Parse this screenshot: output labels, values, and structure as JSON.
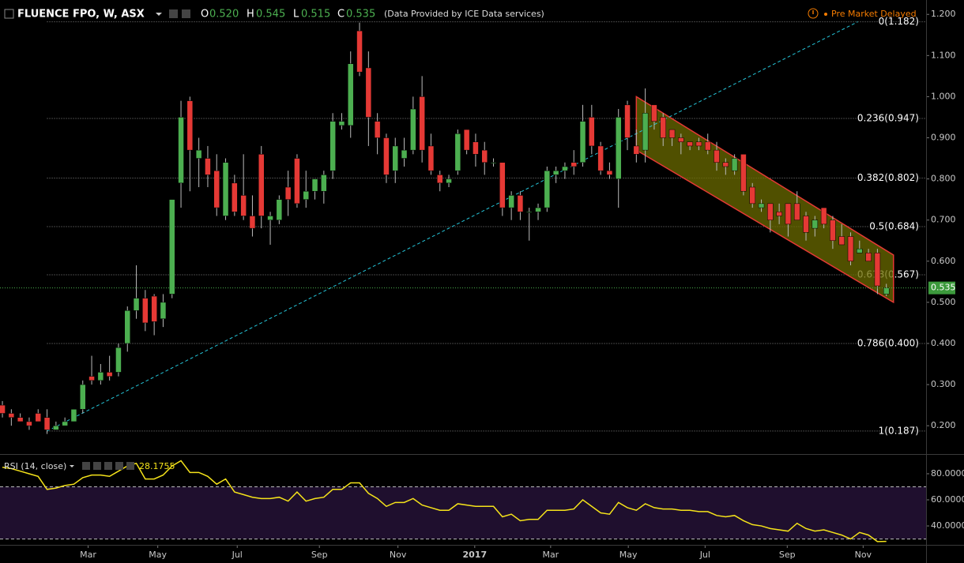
{
  "header": {
    "symbol": "FLUENCE FPO, W, ASX",
    "ohlc": [
      {
        "label": "O",
        "value": "0.520"
      },
      {
        "label": "H",
        "value": "0.545"
      },
      {
        "label": "L",
        "value": "0.515"
      },
      {
        "label": "C",
        "value": "0.535"
      }
    ],
    "provider": "(Data Provided by ICE Data services)",
    "status": "Pre Market Delayed"
  },
  "chart_data": [
    {
      "type": "candlestick",
      "up_color": "#4caf50",
      "down_color": "#e53935",
      "open": [
        0.25,
        0.23,
        0.22,
        0.21,
        0.23,
        0.22,
        0.19,
        0.2,
        0.21,
        0.24,
        0.32,
        0.31,
        0.33,
        0.33,
        0.4,
        0.48,
        0.51,
        0.515,
        0.46,
        0.52,
        0.79,
        0.99,
        0.85,
        0.85,
        0.82,
        0.71,
        0.79,
        0.76,
        0.71,
        0.86,
        0.7,
        0.7,
        0.78,
        0.85,
        0.75,
        0.77,
        0.77,
        0.82,
        0.93,
        0.93,
        1.16,
        1.07,
        0.94,
        0.9,
        0.82,
        0.85,
        0.87,
        1.0,
        0.88,
        0.81,
        0.79,
        0.82,
        0.92,
        0.89,
        0.87,
        0.84,
        0.84,
        0.73,
        0.76,
        0.72,
        0.72,
        0.73,
        0.81,
        0.82,
        0.84,
        0.84,
        0.95,
        0.88,
        0.82,
        0.8,
        0.98,
        0.88,
        0.87,
        0.98,
        0.95,
        0.92,
        0.9,
        0.89,
        0.89,
        0.89,
        0.87,
        0.84,
        0.82,
        0.86,
        0.78,
        0.73,
        0.74,
        0.72,
        0.74,
        0.74,
        0.71,
        0.68,
        0.73,
        0.7,
        0.66,
        0.66,
        0.62,
        0.62,
        0.62,
        0.52
      ],
      "high": [
        0.26,
        0.24,
        0.23,
        0.22,
        0.24,
        0.24,
        0.21,
        0.22,
        0.24,
        0.31,
        0.37,
        0.35,
        0.37,
        0.4,
        0.49,
        0.59,
        0.53,
        0.52,
        0.52,
        0.75,
        0.99,
        1.0,
        0.9,
        0.88,
        0.86,
        0.85,
        0.81,
        0.86,
        0.76,
        0.88,
        0.72,
        0.76,
        0.82,
        0.86,
        0.82,
        0.8,
        0.82,
        0.96,
        0.96,
        1.11,
        1.18,
        1.11,
        0.96,
        0.91,
        0.9,
        0.9,
        1.0,
        1.05,
        0.91,
        0.82,
        0.81,
        0.92,
        0.92,
        0.91,
        0.89,
        0.85,
        0.84,
        0.77,
        0.77,
        0.73,
        0.74,
        0.83,
        0.83,
        0.84,
        0.87,
        0.98,
        0.98,
        0.89,
        0.84,
        0.97,
        0.99,
        0.92,
        1.02,
        0.98,
        0.96,
        0.92,
        0.91,
        0.89,
        0.9,
        0.91,
        0.89,
        0.85,
        0.86,
        0.86,
        0.79,
        0.75,
        0.74,
        0.74,
        0.74,
        0.77,
        0.72,
        0.71,
        0.73,
        0.71,
        0.69,
        0.67,
        0.65,
        0.63,
        0.63,
        0.545
      ],
      "low": [
        0.22,
        0.2,
        0.21,
        0.19,
        0.21,
        0.18,
        0.19,
        0.2,
        0.21,
        0.23,
        0.3,
        0.3,
        0.31,
        0.32,
        0.38,
        0.46,
        0.43,
        0.42,
        0.44,
        0.51,
        0.73,
        0.77,
        0.78,
        0.78,
        0.71,
        0.7,
        0.71,
        0.7,
        0.66,
        0.68,
        0.64,
        0.69,
        0.71,
        0.73,
        0.73,
        0.75,
        0.74,
        0.8,
        0.92,
        0.9,
        1.05,
        0.88,
        0.86,
        0.79,
        0.79,
        0.83,
        0.86,
        0.84,
        0.81,
        0.77,
        0.78,
        0.81,
        0.86,
        0.83,
        0.81,
        0.83,
        0.71,
        0.7,
        0.7,
        0.65,
        0.7,
        0.72,
        0.79,
        0.8,
        0.81,
        0.83,
        0.86,
        0.81,
        0.8,
        0.73,
        0.87,
        0.84,
        0.84,
        0.92,
        0.88,
        0.88,
        0.86,
        0.87,
        0.87,
        0.86,
        0.82,
        0.81,
        0.81,
        0.76,
        0.73,
        0.72,
        0.67,
        0.69,
        0.66,
        0.7,
        0.65,
        0.66,
        0.68,
        0.63,
        0.64,
        0.59,
        0.62,
        0.6,
        0.52,
        0.515
      ],
      "close": [
        0.23,
        0.22,
        0.21,
        0.2,
        0.21,
        0.19,
        0.2,
        0.21,
        0.24,
        0.3,
        0.31,
        0.33,
        0.32,
        0.39,
        0.48,
        0.51,
        0.45,
        0.453,
        0.5,
        0.75,
        0.95,
        0.87,
        0.87,
        0.81,
        0.73,
        0.84,
        0.72,
        0.71,
        0.68,
        0.71,
        0.71,
        0.75,
        0.75,
        0.74,
        0.77,
        0.8,
        0.81,
        0.94,
        0.94,
        1.08,
        1.06,
        0.95,
        0.9,
        0.81,
        0.88,
        0.87,
        0.97,
        0.87,
        0.82,
        0.79,
        0.8,
        0.91,
        0.87,
        0.86,
        0.84,
        0.84,
        0.73,
        0.76,
        0.72,
        0.72,
        0.73,
        0.82,
        0.82,
        0.83,
        0.83,
        0.94,
        0.88,
        0.82,
        0.81,
        0.95,
        0.9,
        0.86,
        0.96,
        0.94,
        0.9,
        0.9,
        0.89,
        0.88,
        0.88,
        0.87,
        0.84,
        0.83,
        0.85,
        0.77,
        0.74,
        0.74,
        0.7,
        0.71,
        0.69,
        0.7,
        0.67,
        0.7,
        0.69,
        0.65,
        0.64,
        0.6,
        0.63,
        0.6,
        0.54,
        0.535
      ],
      "xlim": [
        -0.27,
        103.45
      ],
      "ylim": [
        0.135,
        1.235
      ],
      "xticks": [
        {
          "value": 9.6,
          "label": "Mar"
        },
        {
          "value": 17.4,
          "label": "May"
        },
        {
          "value": 26.3,
          "label": "Jul"
        },
        {
          "value": 35.5,
          "label": "Sep"
        },
        {
          "value": 44.3,
          "label": "Nov"
        },
        {
          "value": 52.9,
          "label": "2017"
        },
        {
          "value": 61.4,
          "label": "Mar"
        },
        {
          "value": 70.1,
          "label": "May"
        },
        {
          "value": 78.7,
          "label": "Jul"
        },
        {
          "value": 87.9,
          "label": "Sep"
        },
        {
          "value": 96.4,
          "label": "Nov"
        }
      ],
      "yticks": [
        {
          "value": 0.2,
          "label": "0.200"
        },
        {
          "value": 0.3,
          "label": "0.300"
        },
        {
          "value": 0.4,
          "label": "0.400"
        },
        {
          "value": 0.5,
          "label": "0.500"
        },
        {
          "value": 0.6,
          "label": "0.600"
        },
        {
          "value": 0.7,
          "label": "0.700"
        },
        {
          "value": 0.8,
          "label": "0.800"
        },
        {
          "value": 0.9,
          "label": "0.900"
        },
        {
          "value": 1.0,
          "label": "1.000"
        },
        {
          "value": 1.1,
          "label": "1.100"
        },
        {
          "value": 1.2,
          "label": "1.200"
        }
      ],
      "fib_levels": [
        {
          "value": 1.182,
          "label": "0(1.182)"
        },
        {
          "value": 0.947,
          "label": "0.236(0.947)"
        },
        {
          "value": 0.802,
          "label": "0.382(0.802)"
        },
        {
          "value": 0.684,
          "label": "0.5(0.684)"
        },
        {
          "value": 0.567,
          "label": "0.618(0.567)"
        },
        {
          "value": 0.4,
          "label": "0.786(0.400)"
        },
        {
          "value": 0.187,
          "label": "1(0.187)"
        }
      ],
      "trend_line": {
        "x": [
          5,
          95.8
        ],
        "y": [
          0.187,
          1.182
        ],
        "color": "#26c6da"
      },
      "channel": {
        "x": [
          71,
          99.8
        ],
        "upper": [
          1.0,
          0.615
        ],
        "lower": [
          0.87,
          0.5
        ],
        "color": "#e53935",
        "fill": "#6b6b00"
      }
    },
    {
      "type": "line",
      "title": "RSI (14, close)",
      "color": "#f5e31a",
      "values": [
        85,
        84,
        82,
        80,
        78,
        68,
        69,
        71,
        72,
        77,
        79,
        79,
        78,
        82,
        86,
        88,
        76,
        76,
        79,
        86,
        90,
        81,
        81,
        78,
        72,
        76,
        66,
        64,
        62,
        61,
        61,
        62,
        59,
        66,
        59,
        61,
        62,
        68,
        68,
        73,
        73,
        65,
        61,
        55,
        58,
        58,
        61,
        56,
        54,
        52,
        52,
        57,
        56,
        55,
        55,
        55,
        47,
        49,
        44,
        45,
        45,
        52,
        52,
        52,
        53,
        60,
        55,
        50,
        49,
        58,
        54,
        52,
        57,
        54,
        53,
        53,
        52,
        52,
        51,
        51,
        48,
        47,
        48,
        44,
        41,
        40,
        38,
        37,
        36,
        42,
        38,
        36,
        37,
        35,
        33,
        30,
        35,
        33,
        28,
        28.1755
      ],
      "bands": [
        30,
        70
      ],
      "ylim": [
        25.5,
        93.3
      ],
      "yticks": [
        {
          "value": 40,
          "label": "40.0000"
        },
        {
          "value": 60,
          "label": "60.0000"
        },
        {
          "value": 80,
          "label": "80.0000"
        }
      ]
    }
  ]
}
